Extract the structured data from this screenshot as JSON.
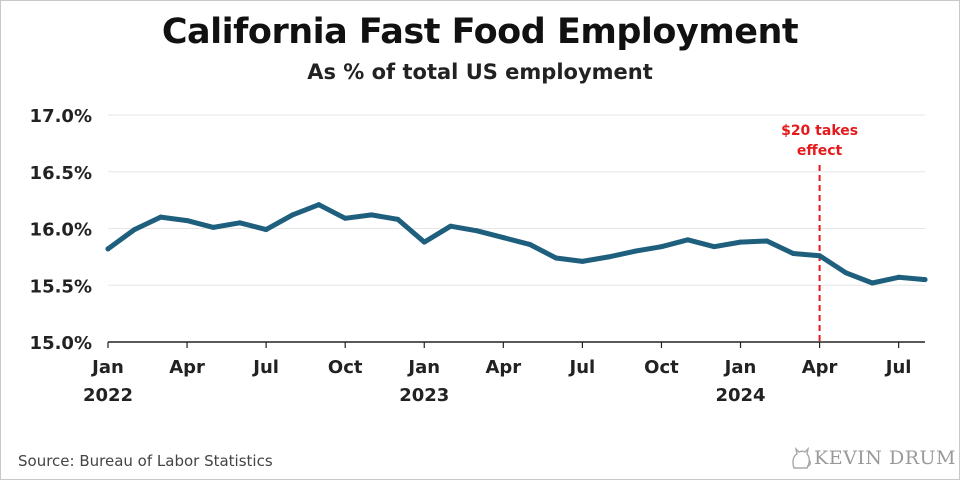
{
  "chart_data": {
    "type": "line",
    "title": "California Fast Food Employment",
    "subtitle": "As % of total US employment",
    "ylim": [
      15.0,
      17.0
    ],
    "y_ticks": [
      "15.0%",
      "15.5%",
      "16.0%",
      "16.5%",
      "17.0%"
    ],
    "y_tick_values": [
      15.0,
      15.5,
      16.0,
      16.5,
      17.0
    ],
    "x_ticks": [
      {
        "label": "Jan",
        "year": "2022",
        "index": 0
      },
      {
        "label": "Apr",
        "year": "",
        "index": 3
      },
      {
        "label": "Jul",
        "year": "",
        "index": 6
      },
      {
        "label": "Oct",
        "year": "",
        "index": 9
      },
      {
        "label": "Jan",
        "year": "2023",
        "index": 12
      },
      {
        "label": "Apr",
        "year": "",
        "index": 15
      },
      {
        "label": "Jul",
        "year": "",
        "index": 18
      },
      {
        "label": "Oct",
        "year": "",
        "index": 21
      },
      {
        "label": "Jan",
        "year": "2024",
        "index": 24
      },
      {
        "label": "Apr",
        "year": "",
        "index": 27
      },
      {
        "label": "Jul",
        "year": "",
        "index": 30
      }
    ],
    "x": [
      "2022-01",
      "2022-02",
      "2022-03",
      "2022-04",
      "2022-05",
      "2022-06",
      "2022-07",
      "2022-08",
      "2022-09",
      "2022-10",
      "2022-11",
      "2022-12",
      "2023-01",
      "2023-02",
      "2023-03",
      "2023-04",
      "2023-05",
      "2023-06",
      "2023-07",
      "2023-08",
      "2023-09",
      "2023-10",
      "2023-11",
      "2023-12",
      "2024-01",
      "2024-02",
      "2024-03",
      "2024-04",
      "2024-05",
      "2024-06",
      "2024-07",
      "2024-08"
    ],
    "series": [
      {
        "values": [
          15.82,
          15.99,
          16.1,
          16.07,
          16.01,
          16.05,
          15.99,
          16.12,
          16.21,
          16.09,
          16.12,
          16.08,
          15.88,
          16.02,
          15.98,
          15.92,
          15.86,
          15.74,
          15.71,
          15.75,
          15.8,
          15.84,
          15.9,
          15.84,
          15.88,
          15.89,
          15.78,
          15.76,
          15.61,
          15.52,
          15.57,
          15.55
        ],
        "color": "#1f5f7e"
      }
    ],
    "annotation": {
      "text_line1": "$20 takes",
      "text_line2": "effect",
      "x": "2024-04",
      "color": "#e41a1c"
    },
    "grid": true
  },
  "source": "Source: Bureau of Labor Statistics",
  "brand": "KEVIN DRUM"
}
